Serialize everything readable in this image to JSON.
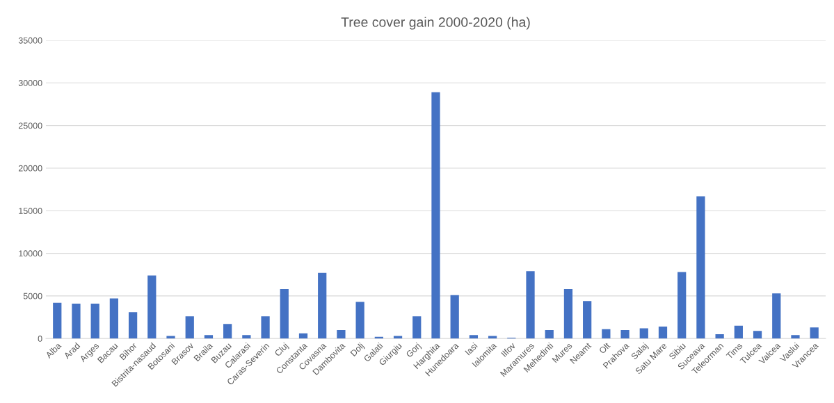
{
  "chart_data": {
    "type": "bar",
    "title": "Tree cover gain 2000-2020 (ha)",
    "categories": [
      "Alba",
      "Arad",
      "Arges",
      "Bacau",
      "Bihor",
      "Bistrita-nasaud",
      "Botosani",
      "Brasov",
      "Braila",
      "Buzau",
      "Calarasi",
      "Caras-Severin",
      "Cluj",
      "Constanta",
      "Covasna",
      "Dambovita",
      "Dolj",
      "Galati",
      "Giurgiu",
      "Gorj",
      "Harghita",
      "Hunedoara",
      "Iasi",
      "Ialomita",
      "Ilfov",
      "Maramures",
      "Mehedinti",
      "Mures",
      "Neamt",
      "Olt",
      "Prahova",
      "Salaj",
      "Satu Mare",
      "Sibiu",
      "Suceava",
      "Teleorman",
      "Tims",
      "Tulcea",
      "Valcea",
      "Vaslui",
      "Vrancea"
    ],
    "values": [
      4200,
      4100,
      4100,
      4700,
      3100,
      7400,
      300,
      2600,
      400,
      1700,
      400,
      2600,
      5800,
      600,
      7700,
      1000,
      4300,
      200,
      300,
      2600,
      28900,
      5100,
      400,
      300,
      100,
      7900,
      1000,
      5800,
      4400,
      1100,
      1000,
      1200,
      1400,
      7800,
      16700,
      500,
      1500,
      900,
      5300,
      400,
      1300
    ],
    "color": "#4472c4",
    "ylim": [
      0,
      35000
    ],
    "yticks": [
      0,
      5000,
      10000,
      15000,
      20000,
      25000,
      30000,
      35000
    ],
    "grid": "y"
  }
}
